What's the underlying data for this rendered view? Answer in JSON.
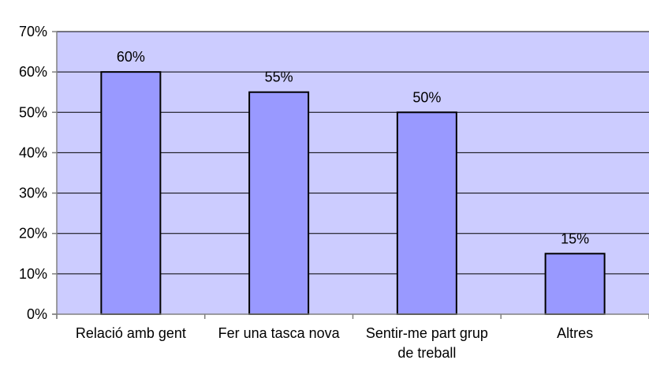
{
  "chart_data": {
    "type": "bar",
    "categories": [
      [
        "Relació amb gent"
      ],
      [
        "Fer una tasca nova"
      ],
      [
        "Sentir-me part grup",
        "de treball"
      ],
      [
        "Altres"
      ]
    ],
    "values": [
      60,
      55,
      50,
      15
    ],
    "data_labels": [
      "60%",
      "55%",
      "50%",
      "15%"
    ],
    "y_ticks": [
      0,
      10,
      20,
      30,
      40,
      50,
      60,
      70
    ],
    "y_tick_labels": [
      "0%",
      "10%",
      "20%",
      "30%",
      "40%",
      "50%",
      "60%",
      "70%"
    ],
    "ylim": [
      0,
      70
    ],
    "grid": true,
    "legend": false,
    "colors": {
      "plot_background": "#ccccff",
      "bar_fill": "#9999ff",
      "bar_stroke": "#000000",
      "gridline": "#000000",
      "axis": "#808080"
    }
  }
}
